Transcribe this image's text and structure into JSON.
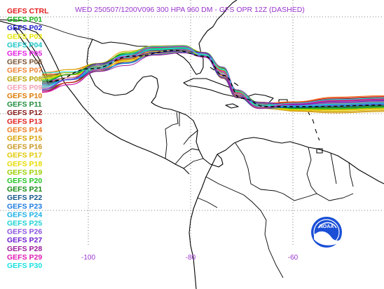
{
  "title": "WED 250507/1200V096  300 HPA 960 DM - GFS OPR 12Z (DASHED)",
  "title_color": "#9933cc",
  "axis": {
    "lon_labels": [
      "-100",
      "-80",
      "-60"
    ],
    "lon_values": [
      -100,
      -80,
      -60
    ],
    "lat_values": [
      30,
      20,
      10
    ],
    "label_color": "#9933cc"
  },
  "legend": [
    {
      "name": "GEFS CTRL",
      "color": "#e11b1b"
    },
    {
      "name": "GEFS P01",
      "color": "#18b318"
    },
    {
      "name": "GEFS P02",
      "color": "#1d1dcc"
    },
    {
      "name": "GEFS P03",
      "color": "#e6e600"
    },
    {
      "name": "GEFS P04",
      "color": "#1cc6c6"
    },
    {
      "name": "GEFS P05",
      "color": "#e11be1"
    },
    {
      "name": "GEFS P06",
      "color": "#7a5232"
    },
    {
      "name": "GEFS P07",
      "color": "#f08030"
    },
    {
      "name": "GEFS P08",
      "color": "#b7a200"
    },
    {
      "name": "GEFS P09",
      "color": "#f4a0b4"
    },
    {
      "name": "GEFS P10",
      "color": "#dd7a00"
    },
    {
      "name": "GEFS P11",
      "color": "#1e8b3c"
    },
    {
      "name": "GEFS P12",
      "color": "#8b1a1a"
    },
    {
      "name": "GEFS P13",
      "color": "#e11b1b"
    },
    {
      "name": "GEFS P14",
      "color": "#ef7a1a"
    },
    {
      "name": "GEFS P15",
      "color": "#d9a000"
    },
    {
      "name": "GEFS P16",
      "color": "#c8961e"
    },
    {
      "name": "GEFS P17",
      "color": "#e2c800"
    },
    {
      "name": "GEFS P18",
      "color": "#e6dc00"
    },
    {
      "name": "GEFS P19",
      "color": "#9ad000"
    },
    {
      "name": "GEFS P20",
      "color": "#22c422"
    },
    {
      "name": "GEFS P21",
      "color": "#128a12"
    },
    {
      "name": "GEFS P22",
      "color": "#14568c"
    },
    {
      "name": "GEFS P23",
      "color": "#1c7ae0"
    },
    {
      "name": "GEFS P24",
      "color": "#1ab0e6"
    },
    {
      "name": "GEFS P25",
      "color": "#1ad2d2"
    },
    {
      "name": "GEFS P26",
      "color": "#8850e0"
    },
    {
      "name": "GEFS P27",
      "color": "#6a1ad0"
    },
    {
      "name": "GEFS P28",
      "color": "#9a1a9a"
    },
    {
      "name": "GEFS P29",
      "color": "#e01ab4"
    },
    {
      "name": "GEFS P30",
      "color": "#1ae0e0"
    }
  ],
  "logo_text": "NOAA"
}
